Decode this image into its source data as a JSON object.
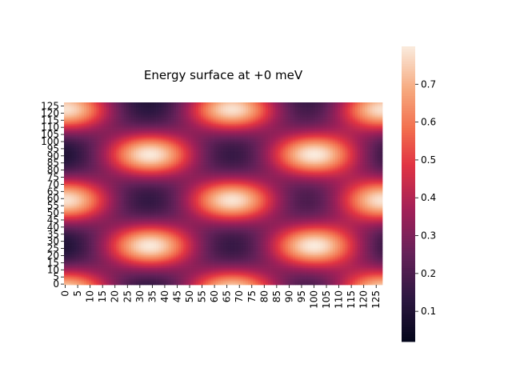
{
  "chart_data": {
    "type": "heatmap",
    "title": "Energy surface at +0 meV",
    "xlabel": "",
    "ylabel": "",
    "x_ticks": [
      "0",
      "5",
      "10",
      "15",
      "20",
      "25",
      "30",
      "35",
      "40",
      "45",
      "50",
      "55",
      "60",
      "65",
      "70",
      "75",
      "80",
      "85",
      "90",
      "95",
      "100",
      "105",
      "110",
      "115",
      "120",
      "125"
    ],
    "y_ticks": [
      "0",
      "5",
      "10",
      "15",
      "20",
      "25",
      "30",
      "35",
      "40",
      "45",
      "50",
      "55",
      "60",
      "65",
      "70",
      "75",
      "80",
      "85",
      "90",
      "95",
      "100",
      "105",
      "110",
      "115",
      "120",
      "125"
    ],
    "grid_size": 128,
    "value_range": [
      0.02,
      0.8
    ],
    "colormap": "rocket",
    "colorbar": {
      "position": "right",
      "ticks": [
        "0.1",
        "0.2",
        "0.3",
        "0.4",
        "0.5",
        "0.6",
        "0.7"
      ],
      "tick_values": [
        0.1,
        0.2,
        0.3,
        0.4,
        0.5,
        0.6,
        0.7
      ]
    },
    "peaks": [
      {
        "x": 0,
        "y": 123,
        "value": 0.78
      },
      {
        "x": 67,
        "y": 123,
        "value": 0.78
      },
      {
        "x": 128,
        "y": 123,
        "value": 0.78
      },
      {
        "x": 34,
        "y": 91,
        "value": 0.79
      },
      {
        "x": 100,
        "y": 91,
        "value": 0.79
      },
      {
        "x": 0,
        "y": 59,
        "value": 0.78
      },
      {
        "x": 67,
        "y": 59,
        "value": 0.78
      },
      {
        "x": 128,
        "y": 59,
        "value": 0.78
      },
      {
        "x": 34,
        "y": 27,
        "value": 0.79
      },
      {
        "x": 100,
        "y": 27,
        "value": 0.79
      },
      {
        "x": 0,
        "y": -5,
        "value": 0.78
      },
      {
        "x": 67,
        "y": -5,
        "value": 0.78
      },
      {
        "x": 128,
        "y": -5,
        "value": 0.78
      }
    ]
  }
}
